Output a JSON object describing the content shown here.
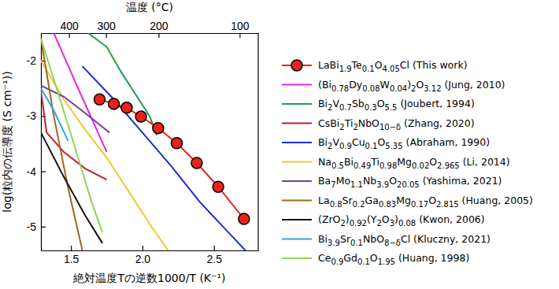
{
  "chart_data": {
    "type": "line",
    "x_label": "絶対温度Tの逆数1000/T (K⁻¹)",
    "y_label": "log(粒内の伝導度 (S cm⁻¹))",
    "x2_label": "温度 (°C)",
    "xlim": [
      1.29,
      2.81
    ],
    "ylim": [
      -5.43,
      -1.5
    ],
    "xticks": [
      1.5,
      {
        "value": 2,
        "label": "2.0"
      },
      2.5
    ],
    "yticks": [
      -5,
      -4,
      -3,
      -2
    ],
    "x2ticks": [
      {
        "value": 1.486,
        "label": "400"
      },
      {
        "value": 1.745,
        "label": "300"
      },
      {
        "value": 2.113,
        "label": "200"
      },
      {
        "value": 2.68,
        "label": "100"
      }
    ],
    "legend": "right",
    "grid": false,
    "series": [
      {
        "name": "LaBi1.9Te0.1O4.05Cl (This work)",
        "color": "#e8231d",
        "marker": "circle",
        "x": [
          1.7,
          1.8,
          1.89,
          1.99,
          2.11,
          2.24,
          2.38,
          2.53,
          2.71
        ],
        "values": [
          -2.7,
          -2.78,
          -2.85,
          -3.01,
          -3.22,
          -3.49,
          -3.85,
          -4.28,
          -4.86
        ]
      },
      {
        "name": "(Bi0.78Dy0.08W0.04)2O3.12 (Jung, 2010)",
        "color": "#e62ae0",
        "x": [
          1.38,
          1.55,
          1.75
        ],
        "values": [
          -1.5,
          -2.5,
          -3.65
        ]
      },
      {
        "name": "Bi2V0.7Sb0.3O5.5 (Joubert, 1994)",
        "color": "#1e9e48",
        "x": [
          1.62,
          1.75,
          1.85,
          1.95,
          2.05,
          2.1
        ],
        "values": [
          -1.5,
          -1.75,
          -2.2,
          -2.6,
          -3.0,
          -3.35
        ]
      },
      {
        "name": "CsBi2Ti2NbO10−δ (Zhang, 2020)",
        "color": "#c3202c",
        "x": [
          1.29,
          1.33,
          1.45,
          1.6,
          1.75
        ],
        "values": [
          -2.55,
          -3.3,
          -3.65,
          -3.95,
          -4.15
        ]
      },
      {
        "name": "Bi2V0.9Cu0.1O5.35 (Abraham, 1990)",
        "color": "#1f2fd0",
        "x": [
          1.58,
          1.8,
          2.0,
          2.2,
          2.4,
          2.6,
          2.72
        ],
        "values": [
          -2.1,
          -2.7,
          -3.3,
          -3.9,
          -4.55,
          -5.1,
          -5.43
        ]
      },
      {
        "name": "Na0.5Bi0.49Ti0.98Mg0.02O2.965 (Li, 2014)",
        "color": "#f5c431",
        "x": [
          1.29,
          1.45,
          1.6,
          1.75,
          1.9,
          2.05,
          2.18
        ],
        "values": [
          -2.0,
          -2.7,
          -3.25,
          -3.75,
          -4.35,
          -4.95,
          -5.43
        ]
      },
      {
        "name": "Ba7Mo1.1Nb3.9O20.05 (Yashima, 2021)",
        "color": "#6a3fa0",
        "x": [
          1.29,
          1.45,
          1.6,
          1.77
        ],
        "values": [
          -2.45,
          -2.65,
          -2.95,
          -3.3
        ]
      },
      {
        "name": "La0.8Sr0.2Ga0.83Mg0.17O2.815 (Huang, 2005)",
        "color": "#a0661a",
        "x": [
          1.29,
          1.38,
          1.48,
          1.58
        ],
        "values": [
          -1.6,
          -3.0,
          -4.3,
          -5.43
        ]
      },
      {
        "name": "(ZrO2)0.92(Y2O3)0.08 (Kwon, 2006)",
        "color": "#111111",
        "x": [
          1.29,
          1.45,
          1.6,
          1.72
        ],
        "values": [
          -3.3,
          -4.1,
          -4.8,
          -5.3
        ]
      },
      {
        "name": "Bi3.9Sr0.1NbO8−δCl (Kluczny, 2021)",
        "color": "#29a8e0",
        "x": [
          1.29,
          1.38,
          1.48
        ],
        "values": [
          -2.5,
          -2.9,
          -3.45
        ]
      },
      {
        "name": "Ce0.9Gd0.1O1.95 (Huang, 1998)",
        "color": "#8fd45a",
        "x": [
          1.29,
          1.4,
          1.52,
          1.65,
          1.72
        ],
        "values": [
          -1.6,
          -2.5,
          -3.5,
          -4.6,
          -5.1
        ]
      }
    ]
  }
}
